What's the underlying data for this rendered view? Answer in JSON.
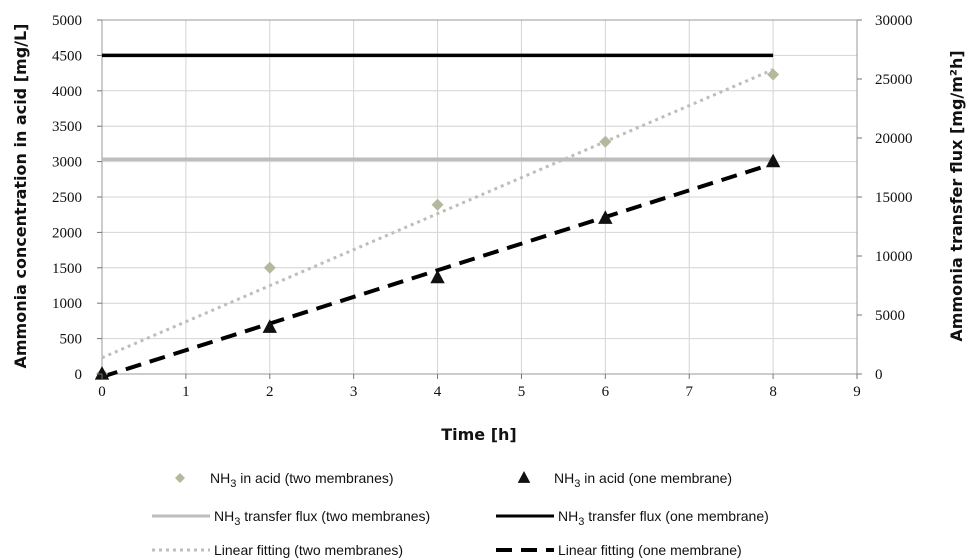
{
  "chart_data": {
    "type": "scatter",
    "xlabel": "Time [h]",
    "ylabel_left": "Ammonia concentration in acid [mg/L]",
    "ylabel_right": "Ammonia transfer flux [mg/m²h]",
    "xlim": [
      0,
      9
    ],
    "ylim_left": [
      0,
      5000
    ],
    "ylim_right": [
      0,
      30000
    ],
    "x_ticks": [
      "0",
      "1",
      "2",
      "3",
      "4",
      "5",
      "6",
      "7",
      "8",
      "9"
    ],
    "y_left_ticks": [
      "0",
      "500",
      "1000",
      "1500",
      "2000",
      "2500",
      "3000",
      "3500",
      "4000",
      "4500",
      "5000"
    ],
    "y_right_ticks": [
      "0",
      "5000",
      "10000",
      "15000",
      "20000",
      "25000",
      "30000"
    ],
    "grid": "horizontal and vertical",
    "legend_position": "bottom",
    "series": [
      {
        "name": "NH3 in acid (two membranes)",
        "kind": "points",
        "marker": "diamond",
        "color": "#b4b89c",
        "x": [
          0,
          2,
          4,
          6,
          8
        ],
        "y": [
          0,
          1500,
          2390,
          3280,
          4230
        ]
      },
      {
        "name": "NH3 in acid (one membrane)",
        "kind": "points",
        "marker": "triangle",
        "color": "#111111",
        "x": [
          0,
          2,
          4,
          6,
          8
        ],
        "y": [
          0,
          660,
          1360,
          2200,
          3000
        ]
      },
      {
        "name": "NH3 transfer flux (two membranes)",
        "kind": "line",
        "axis": "right",
        "style": "solid",
        "color": "#bdbdbd",
        "x": [
          0,
          8
        ],
        "y": [
          18200,
          18200
        ]
      },
      {
        "name": "NH3 transfer flux (one membrane)",
        "kind": "line",
        "axis": "right",
        "style": "solid",
        "color": "#000000",
        "x": [
          0,
          8
        ],
        "y": [
          27000,
          27000
        ]
      },
      {
        "name": "Linear fitting (two membranes)",
        "kind": "line",
        "style": "dotted",
        "color": "#bdbdbd",
        "x": [
          0,
          8
        ],
        "y": [
          230,
          4300
        ]
      },
      {
        "name": "Linear fitting (one membrane)",
        "kind": "line",
        "style": "dashed",
        "color": "#000000",
        "x": [
          0,
          8
        ],
        "y": [
          -40,
          2970
        ]
      }
    ]
  },
  "legend": [
    {
      "pre": "NH",
      "sub": "3",
      "post": " in acid (two membranes)"
    },
    {
      "pre": "NH",
      "sub": "3",
      "post": " in acid (one membrane)"
    },
    {
      "pre": "NH",
      "sub": "3",
      "post": " transfer flux (two membranes)"
    },
    {
      "pre": "NH",
      "sub": "3",
      "post": " transfer flux (one membrane)"
    },
    {
      "pre": "",
      "sub": "",
      "post": "Linear fitting (two membranes)"
    },
    {
      "pre": "",
      "sub": "",
      "post": "Linear fitting (one membrane)"
    }
  ],
  "colors": {
    "grid": "#d4d4d4",
    "frame": "#9a9a9a"
  }
}
